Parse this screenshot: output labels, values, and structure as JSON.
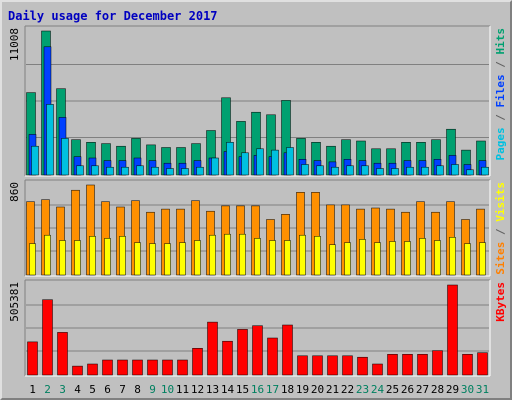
{
  "chart_data": {
    "title": "Daily usage for December 2017",
    "type": "bar",
    "days": [
      "1",
      "2",
      "3",
      "4",
      "5",
      "6",
      "7",
      "8",
      "9",
      "10",
      "11",
      "12",
      "13",
      "14",
      "15",
      "16",
      "17",
      "18",
      "19",
      "20",
      "21",
      "22",
      "23",
      "24",
      "25",
      "26",
      "27",
      "28",
      "29",
      "30",
      "31"
    ],
    "weekend_days": [
      "2",
      "3",
      "9",
      "10",
      "16",
      "17",
      "23",
      "24",
      "30",
      "31"
    ],
    "panels": [
      {
        "id": "top",
        "max_label": "11008",
        "max": 11008,
        "legend": [
          {
            "text": "Pages",
            "color": "#00c0e0"
          },
          {
            "text": " / ",
            "color": "#606060"
          },
          {
            "text": "Files",
            "color": "#0040ff"
          },
          {
            "text": " / ",
            "color": "#606060"
          },
          {
            "text": "Hits",
            "color": "#00a070"
          }
        ],
        "series": [
          {
            "name": "Hits",
            "color": "#00a070",
            "values": [
              6300,
              11008,
              6600,
              2700,
              2500,
              2400,
              2200,
              2800,
              2300,
              2100,
              2100,
              2400,
              3400,
              5900,
              4100,
              4800,
              4600,
              5700,
              2800,
              2500,
              2200,
              2700,
              2600,
              2000,
              2000,
              2500,
              2500,
              2700,
              3500,
              1900,
              2600
            ]
          },
          {
            "name": "Files",
            "color": "#0040ff",
            "values": [
              3100,
              9800,
              4400,
              1400,
              1300,
              1100,
              1100,
              1300,
              1100,
              900,
              900,
              1100,
              1300,
              1800,
              1400,
              1500,
              1400,
              1700,
              1200,
              1100,
              1000,
              1200,
              1100,
              900,
              900,
              1100,
              1100,
              1200,
              1500,
              800,
              1100
            ]
          },
          {
            "name": "Pages",
            "color": "#00c0e0",
            "values": [
              2200,
              5400,
              2800,
              700,
              700,
              600,
              600,
              700,
              600,
              500,
              500,
              600,
              1300,
              2500,
              1700,
              2000,
              1900,
              2100,
              800,
              700,
              600,
              700,
              700,
              500,
              500,
              600,
              600,
              700,
              800,
              400,
              600
            ]
          }
        ]
      },
      {
        "id": "middle",
        "max_label": "860",
        "max": 860,
        "legend": [
          {
            "text": "Sites",
            "color": "#ff8000"
          },
          {
            "text": " / ",
            "color": "#606060"
          },
          {
            "text": "Visits",
            "color": "#ffff00"
          }
        ],
        "series": [
          {
            "name": "Visits",
            "color": "#ff9000",
            "values": [
              700,
              720,
              650,
              810,
              860,
              700,
              650,
              710,
              600,
              630,
              630,
              710,
              610,
              660,
              660,
              660,
              530,
              580,
              790,
              790,
              670,
              670,
              630,
              640,
              630,
              600,
              700,
              600,
              700,
              530,
              630
            ]
          },
          {
            "name": "Sites",
            "color": "#ffff00",
            "values": [
              300,
              380,
              330,
              330,
              370,
              350,
              370,
              310,
              300,
              300,
              310,
              330,
              380,
              390,
              390,
              350,
              330,
              330,
              380,
              370,
              290,
              310,
              340,
              310,
              320,
              320,
              350,
              330,
              360,
              300,
              310
            ]
          }
        ]
      },
      {
        "id": "bottom",
        "max_label": "505381",
        "max": 505381,
        "legend": [
          {
            "text": "KBytes",
            "color": "#ff0000"
          }
        ],
        "series": [
          {
            "name": "KBytes",
            "color": "#ff0000",
            "values": [
              186000,
              423000,
              239000,
              50000,
              62000,
              84000,
              84000,
              84000,
              84000,
              84000,
              84000,
              150000,
              297000,
              190000,
              256000,
              277000,
              208000,
              281000,
              108000,
              108000,
              108000,
              108000,
              100000,
              62000,
              116000,
              116000,
              116000,
              137000,
              505381,
              116000,
              125000
            ]
          }
        ]
      }
    ]
  }
}
